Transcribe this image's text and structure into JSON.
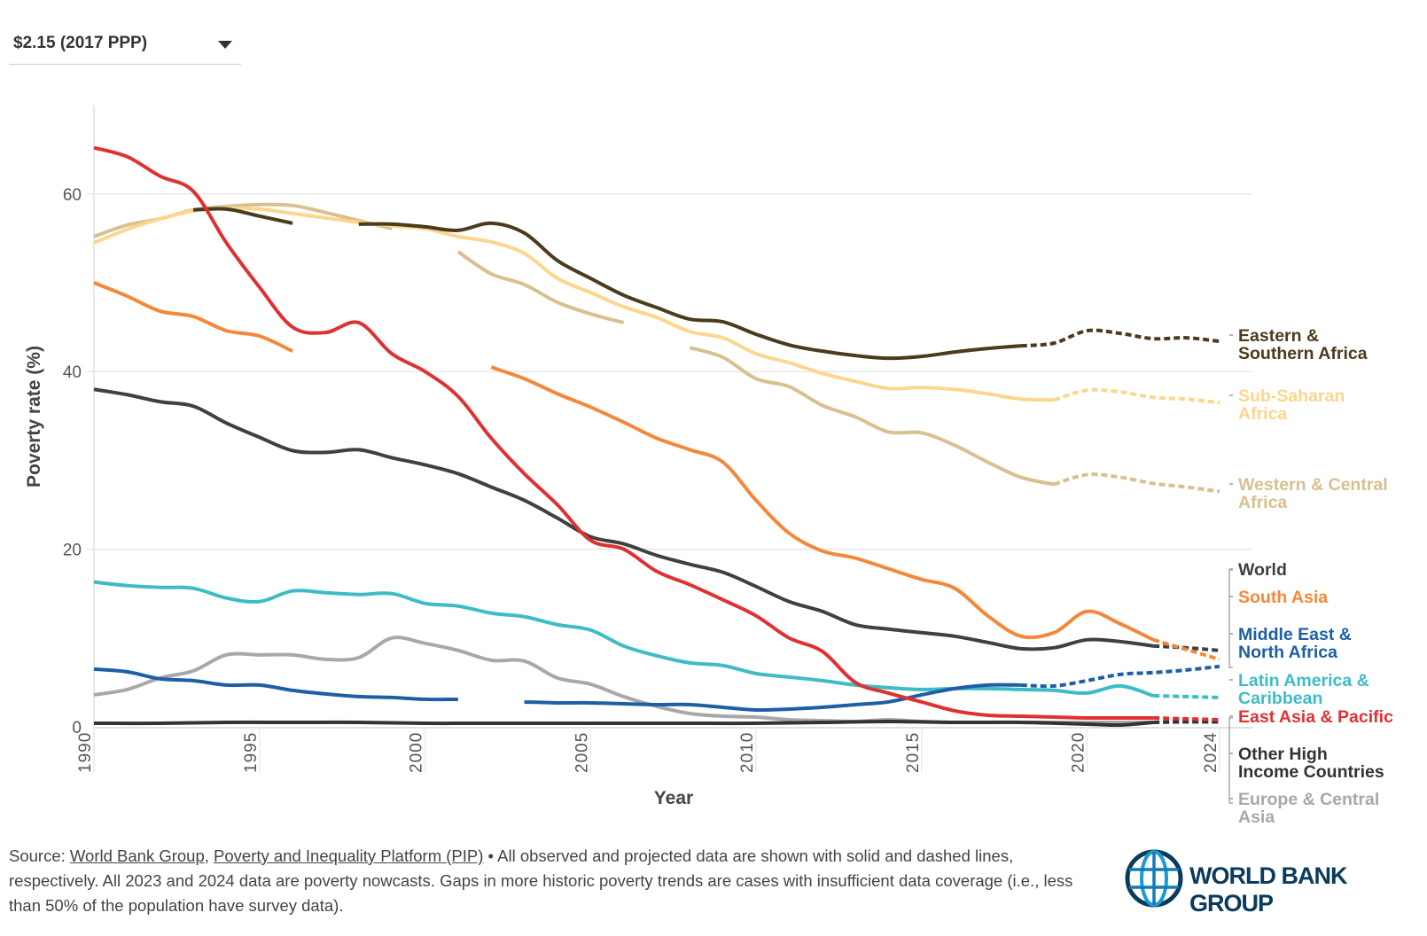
{
  "dropdown": {
    "selected": "$2.15 (2017 PPP)"
  },
  "footer": {
    "prefix": "Source: ",
    "link1": "World Bank Group",
    "sep": ", ",
    "link2": "Poverty and Inequality Platform (PIP)",
    "text": " • All observed and projected data are shown with solid and dashed lines, respectively. All 2023 and 2024 data are poverty nowcasts. Gaps in more historic poverty trends are cases with insufficient data coverage (i.e., less than 50% of the population have survey data)."
  },
  "logo": {
    "text": "WORLD BANK GROUP"
  },
  "chart_data": {
    "type": "line",
    "xlabel": "Year",
    "ylabel": "Poverty rate (%)",
    "xlim": [
      1990,
      2025
    ],
    "ylim": [
      0,
      70
    ],
    "x_ticks": [
      "1990",
      "1995",
      "2000",
      "2005",
      "2010",
      "2015",
      "2020",
      "2024"
    ],
    "y_ticks": [
      "0",
      "20",
      "40",
      "60"
    ],
    "grid": "horizontal",
    "legend": "right",
    "series": [
      {
        "name": "Eastern & Southern Africa",
        "color": "#4a3b1c",
        "segments": [
          {
            "x": [
              1993,
              1994,
              1995,
              1996
            ],
            "y": [
              58.2,
              58.3,
              57.5,
              56.7
            ],
            "dashed": false
          },
          {
            "x": [
              1998,
              1999,
              2000,
              2001,
              2002,
              2003,
              2004,
              2005,
              2006,
              2007,
              2008,
              2009,
              2010,
              2011,
              2012,
              2013,
              2014,
              2015,
              2016,
              2017,
              2018
            ],
            "y": [
              56.6,
              56.6,
              56.3,
              55.9,
              56.7,
              55.6,
              52.5,
              50.5,
              48.6,
              47.2,
              45.9,
              45.6,
              44.2,
              43.0,
              42.3,
              41.8,
              41.5,
              41.7,
              42.2,
              42.6,
              42.9
            ],
            "dashed": false
          },
          {
            "x": [
              2018,
              2019,
              2020,
              2021,
              2022,
              2023,
              2024
            ],
            "y": [
              42.9,
              43.2,
              44.6,
              44.3,
              43.7,
              43.8,
              43.4
            ],
            "dashed": true
          }
        ]
      },
      {
        "name": "Sub-Saharan Africa",
        "color": "#fcd68d",
        "segments": [
          {
            "x": [
              1990,
              1991,
              1992,
              1993,
              1994,
              1995,
              1996,
              1997,
              1998,
              1999,
              2000,
              2001,
              2002,
              2003,
              2004,
              2005,
              2006,
              2007,
              2008,
              2009,
              2010,
              2011,
              2012,
              2013,
              2014,
              2015,
              2016,
              2017,
              2018,
              2019
            ],
            "y": [
              54.5,
              56.0,
              57.2,
              58.1,
              58.4,
              58.3,
              57.8,
              57.3,
              56.8,
              56.4,
              56.1,
              55.2,
              54.6,
              53.3,
              50.5,
              48.9,
              47.3,
              46.1,
              44.5,
              43.8,
              42.0,
              41.0,
              39.8,
              38.9,
              38.1,
              38.2,
              38.0,
              37.5,
              36.9,
              36.8
            ],
            "dashed": false
          },
          {
            "x": [
              2019,
              2020,
              2021,
              2022,
              2023,
              2024
            ],
            "y": [
              36.8,
              37.9,
              37.7,
              37.1,
              36.9,
              36.5
            ],
            "dashed": true
          }
        ]
      },
      {
        "name": "Western & Central Africa",
        "color": "#d8c08f",
        "segments": [
          {
            "x": [
              1990,
              1991,
              1992,
              1993,
              1994,
              1995,
              1996,
              1997,
              1998,
              1999
            ],
            "y": [
              55.2,
              56.5,
              57.2,
              58.2,
              58.6,
              58.8,
              58.7,
              57.9,
              57.0,
              56.1
            ],
            "dashed": false
          },
          {
            "x": [
              2001,
              2002,
              2003,
              2004,
              2005,
              2006
            ],
            "y": [
              53.5,
              51.0,
              49.8,
              47.8,
              46.5,
              45.5
            ],
            "dashed": false
          },
          {
            "x": [
              2008,
              2009,
              2010,
              2011,
              2012,
              2013,
              2014,
              2015,
              2016,
              2017,
              2018,
              2019
            ],
            "y": [
              42.7,
              41.6,
              39.2,
              38.3,
              36.2,
              34.9,
              33.2,
              33.1,
              31.7,
              29.8,
              28.1,
              27.3
            ],
            "dashed": false
          },
          {
            "x": [
              2019,
              2020,
              2021,
              2022,
              2023,
              2024
            ],
            "y": [
              27.3,
              28.4,
              28.1,
              27.4,
              27.0,
              26.5
            ],
            "dashed": true
          }
        ]
      },
      {
        "name": "World",
        "color": "#404040",
        "segments": [
          {
            "x": [
              1990,
              1991,
              1992,
              1993,
              1994,
              1995,
              1996,
              1997,
              1998,
              1999,
              2000,
              2001,
              2002,
              2003,
              2004,
              2005,
              2006,
              2007,
              2008,
              2009,
              2010,
              2011,
              2012,
              2013,
              2014,
              2015,
              2016,
              2017,
              2018,
              2019,
              2020,
              2021,
              2022
            ],
            "y": [
              38.0,
              37.4,
              36.6,
              36.1,
              34.2,
              32.6,
              31.1,
              30.9,
              31.2,
              30.3,
              29.5,
              28.5,
              27.0,
              25.5,
              23.5,
              21.4,
              20.6,
              19.3,
              18.3,
              17.4,
              15.8,
              14.1,
              13.0,
              11.5,
              11.0,
              10.6,
              10.2,
              9.5,
              8.8,
              8.9,
              9.8,
              9.6,
              9.1
            ],
            "dashed": false
          },
          {
            "x": [
              2022,
              2023,
              2024
            ],
            "y": [
              9.1,
              8.9,
              8.6
            ],
            "dashed": true
          }
        ]
      },
      {
        "name": "South Asia",
        "color": "#f5873a",
        "segments": [
          {
            "x": [
              1990,
              1991,
              1992,
              1993,
              1994,
              1995,
              1996
            ],
            "y": [
              50.0,
              48.5,
              46.8,
              46.2,
              44.6,
              44.0,
              42.3
            ],
            "dashed": false
          },
          {
            "x": [
              2002,
              2003,
              2004,
              2005,
              2006,
              2007,
              2008,
              2009,
              2010,
              2011,
              2012,
              2013,
              2014,
              2015,
              2016,
              2017,
              2018,
              2019,
              2020,
              2021,
              2022
            ],
            "y": [
              40.5,
              39.2,
              37.5,
              36.0,
              34.3,
              32.5,
              31.2,
              29.8,
              25.5,
              21.8,
              19.8,
              19.0,
              17.8,
              16.6,
              15.6,
              12.5,
              10.2,
              10.6,
              13.0,
              11.6,
              9.8
            ],
            "dashed": false
          },
          {
            "x": [
              2022,
              2023,
              2024
            ],
            "y": [
              9.8,
              8.7,
              7.6
            ],
            "dashed": true
          }
        ]
      },
      {
        "name": "Middle East & North Africa",
        "color": "#1d5fa5",
        "segments": [
          {
            "x": [
              1990,
              1991,
              1992,
              1993,
              1994,
              1995,
              1996,
              1997,
              1998,
              1999,
              2000,
              2001
            ],
            "y": [
              6.5,
              6.2,
              5.4,
              5.2,
              4.7,
              4.7,
              4.1,
              3.7,
              3.4,
              3.3,
              3.1,
              3.1
            ],
            "dashed": false
          },
          {
            "x": [
              2003,
              2004,
              2005,
              2006,
              2007,
              2008,
              2009,
              2010,
              2011,
              2012,
              2013,
              2014,
              2015,
              2016,
              2017,
              2018
            ],
            "y": [
              2.8,
              2.7,
              2.7,
              2.6,
              2.5,
              2.5,
              2.2,
              1.9,
              2.0,
              2.2,
              2.5,
              2.8,
              3.6,
              4.3,
              4.7,
              4.7
            ],
            "dashed": false
          },
          {
            "x": [
              2018,
              2019,
              2020,
              2021,
              2022,
              2023,
              2024
            ],
            "y": [
              4.7,
              4.6,
              5.2,
              5.9,
              6.1,
              6.4,
              6.8
            ],
            "dashed": true
          }
        ]
      },
      {
        "name": "Latin America & Caribbean",
        "color": "#3dbcc6",
        "segments": [
          {
            "x": [
              1990,
              1991,
              1992,
              1993,
              1994,
              1995,
              1996,
              1997,
              1998,
              1999,
              2000,
              2001,
              2002,
              2003,
              2004,
              2005,
              2006,
              2007,
              2008,
              2009,
              2010,
              2011,
              2012,
              2013,
              2014,
              2015,
              2016,
              2017,
              2018,
              2019,
              2020,
              2021,
              2022
            ],
            "y": [
              16.3,
              15.9,
              15.7,
              15.6,
              14.5,
              14.1,
              15.3,
              15.1,
              14.9,
              15.0,
              13.9,
              13.6,
              12.8,
              12.4,
              11.5,
              10.9,
              9.1,
              8.0,
              7.2,
              6.9,
              6.0,
              5.6,
              5.2,
              4.7,
              4.4,
              4.2,
              4.3,
              4.3,
              4.2,
              4.1,
              3.8,
              4.6,
              3.5
            ],
            "dashed": false
          },
          {
            "x": [
              2022,
              2023,
              2024
            ],
            "y": [
              3.5,
              3.4,
              3.3
            ],
            "dashed": true
          }
        ]
      },
      {
        "name": "East Asia & Pacific",
        "color": "#e03131",
        "segments": [
          {
            "x": [
              1990,
              1991,
              1992,
              1993,
              1994,
              1995,
              1996,
              1997,
              1998,
              1999,
              2000,
              2001,
              2002,
              2003,
              2004,
              2005,
              2006,
              2007,
              2008,
              2009,
              2010,
              2011,
              2012,
              2013,
              2014,
              2015,
              2016,
              2017,
              2018,
              2019,
              2020,
              2021,
              2022
            ],
            "y": [
              65.2,
              64.2,
              62.0,
              60.3,
              54.5,
              49.5,
              45.0,
              44.4,
              45.5,
              42.0,
              40.0,
              37.2,
              32.5,
              28.5,
              25.0,
              21.0,
              20.0,
              17.5,
              16.0,
              14.3,
              12.5,
              10.0,
              8.5,
              5.0,
              3.8,
              2.8,
              1.8,
              1.3,
              1.2,
              1.1,
              1.0,
              1.0,
              1.0
            ],
            "dashed": false
          },
          {
            "x": [
              2022,
              2023,
              2024
            ],
            "y": [
              1.0,
              0.9,
              0.8
            ],
            "dashed": true
          }
        ]
      },
      {
        "name": "Other High Income Countries",
        "color": "#333333",
        "segments": [
          {
            "x": [
              1990,
              1992,
              1994,
              1996,
              1998,
              2000,
              2002,
              2004,
              2006,
              2008,
              2010,
              2012,
              2014,
              2016,
              2018,
              2020,
              2021,
              2022
            ],
            "y": [
              0.4,
              0.4,
              0.5,
              0.5,
              0.5,
              0.4,
              0.4,
              0.4,
              0.4,
              0.4,
              0.4,
              0.5,
              0.6,
              0.5,
              0.5,
              0.3,
              0.2,
              0.5
            ],
            "dashed": false
          },
          {
            "x": [
              2022,
              2023,
              2024
            ],
            "y": [
              0.5,
              0.6,
              0.6
            ],
            "dashed": true
          }
        ]
      },
      {
        "name": "Europe & Central Asia",
        "color": "#a8a8a8",
        "segments": [
          {
            "x": [
              1990,
              1991,
              1992,
              1993,
              1994,
              1995,
              1996,
              1997,
              1998,
              1999,
              2000,
              2001,
              2002,
              2003,
              2004,
              2005,
              2006,
              2007,
              2008,
              2009,
              2010,
              2011,
              2012,
              2013,
              2014,
              2015,
              2016,
              2017,
              2018,
              2019,
              2020,
              2021,
              2022
            ],
            "y": [
              3.6,
              4.2,
              5.5,
              6.3,
              8.1,
              8.1,
              8.1,
              7.6,
              7.8,
              10.0,
              9.4,
              8.6,
              7.5,
              7.4,
              5.5,
              4.8,
              3.4,
              2.3,
              1.5,
              1.2,
              1.1,
              0.8,
              0.7,
              0.6,
              0.8,
              0.6,
              0.5,
              0.5,
              0.5,
              0.5,
              0.5,
              0.5,
              0.5
            ],
            "dashed": false
          },
          {
            "x": [
              2022,
              2023,
              2024
            ],
            "y": [
              0.5,
              0.5,
              0.5
            ],
            "dashed": true
          }
        ]
      }
    ],
    "labels": [
      {
        "series": "Eastern & Southern Africa",
        "lines": [
          "Eastern &",
          "Southern Africa"
        ]
      },
      {
        "series": "Sub-Saharan Africa",
        "lines": [
          "Sub-Saharan",
          "Africa"
        ]
      },
      {
        "series": "Western & Central Africa",
        "lines": [
          "Western & Central",
          "Africa"
        ]
      },
      {
        "series": "World",
        "lines": [
          "World"
        ]
      },
      {
        "series": "South Asia",
        "lines": [
          "South Asia"
        ]
      },
      {
        "series": "Middle East & North Africa",
        "lines": [
          "Middle East &",
          "North Africa"
        ]
      },
      {
        "series": "Latin America & Caribbean",
        "lines": [
          "Latin America &",
          "Caribbean"
        ]
      },
      {
        "series": "East Asia & Pacific",
        "lines": [
          "East Asia & Pacific"
        ]
      },
      {
        "series": "Other High Income Countries",
        "lines": [
          "Other High",
          "Income Countries"
        ]
      },
      {
        "series": "Europe & Central Asia",
        "lines": [
          "Europe & Central",
          "Asia"
        ]
      }
    ]
  }
}
